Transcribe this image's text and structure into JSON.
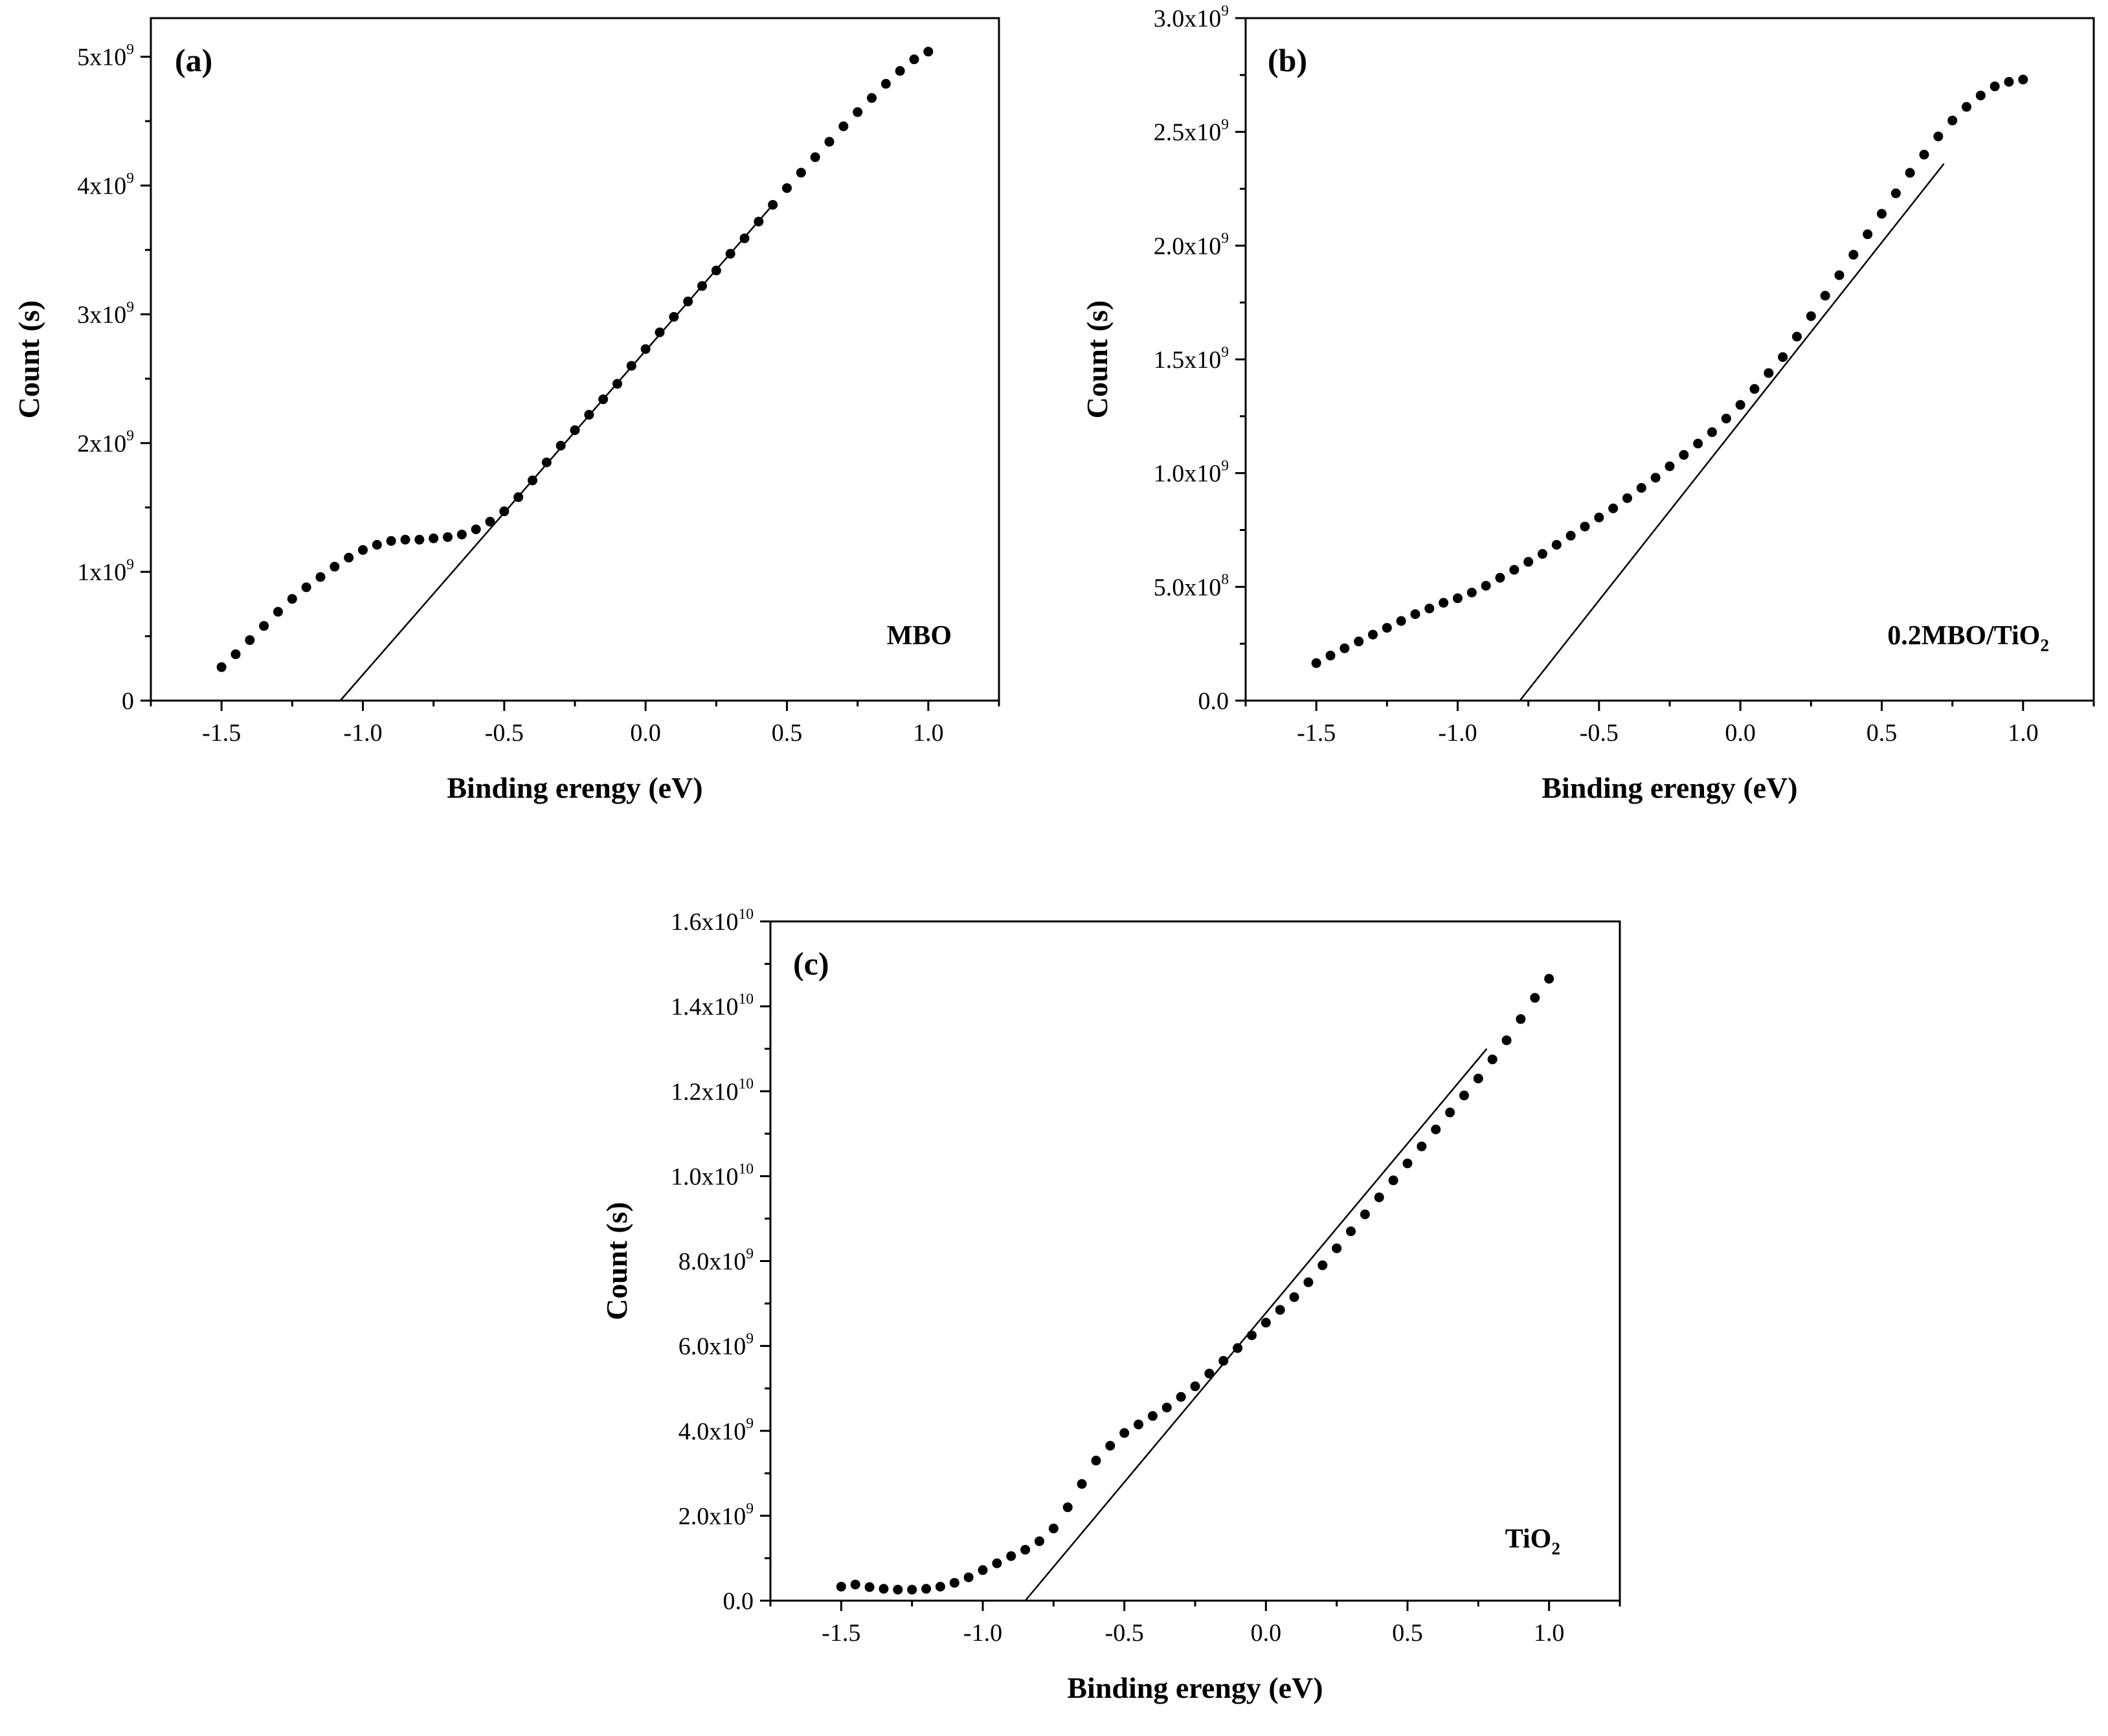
{
  "chart_data": [
    {
      "type": "scatter",
      "panel_label": "(a)",
      "annotation": "MBO",
      "xlabel": "Binding erengy (eV)",
      "ylabel": "Count (s)",
      "xlim": [
        -1.75,
        1.25
      ],
      "ylim": [
        0,
        5300000000.0
      ],
      "x_ticks": [
        -1.5,
        -1.0,
        -0.5,
        0.0,
        0.5,
        1.0
      ],
      "x_tick_labels": [
        "-1.5",
        "-1.0",
        "-0.5",
        "0.0",
        "0.5",
        "1.0"
      ],
      "y_ticks": [
        0,
        1000000000.0,
        2000000000.0,
        3000000000.0,
        4000000000.0,
        5000000000.0
      ],
      "y_tick_labels": [
        {
          "base": "0",
          "exp": ""
        },
        {
          "base": "1x10",
          "exp": "9"
        },
        {
          "base": "2x10",
          "exp": "9"
        },
        {
          "base": "3x10",
          "exp": "9"
        },
        {
          "base": "4x10",
          "exp": "9"
        },
        {
          "base": "5x10",
          "exp": "9"
        }
      ],
      "series": [
        {
          "name": "data",
          "x": [
            -1.5,
            -1.45,
            -1.4,
            -1.35,
            -1.3,
            -1.25,
            -1.2,
            -1.15,
            -1.1,
            -1.05,
            -1.0,
            -0.95,
            -0.9,
            -0.85,
            -0.8,
            -0.75,
            -0.7,
            -0.65,
            -0.6,
            -0.55,
            -0.5,
            -0.45,
            -0.4,
            -0.35,
            -0.3,
            -0.25,
            -0.2,
            -0.15,
            -0.1,
            -0.05,
            0.0,
            0.05,
            0.1,
            0.15,
            0.2,
            0.25,
            0.3,
            0.35,
            0.4,
            0.45,
            0.5,
            0.55,
            0.6,
            0.65,
            0.7,
            0.75,
            0.8,
            0.85,
            0.9,
            0.95,
            1.0
          ],
          "y": [
            260000000.0,
            360000000.0,
            470000000.0,
            580000000.0,
            690000000.0,
            790000000.0,
            880000000.0,
            960000000.0,
            1040000000.0,
            1110000000.0,
            1170000000.0,
            1210000000.0,
            1240000000.0,
            1250000000.0,
            1250000000.0,
            1260000000.0,
            1270000000.0,
            1290000000.0,
            1330000000.0,
            1390000000.0,
            1470000000.0,
            1580000000.0,
            1710000000.0,
            1850000000.0,
            1980000000.0,
            2100000000.0,
            2220000000.0,
            2340000000.0,
            2460000000.0,
            2600000000.0,
            2730000000.0,
            2860000000.0,
            2980000000.0,
            3100000000.0,
            3220000000.0,
            3340000000.0,
            3470000000.0,
            3590000000.0,
            3720000000.0,
            3850000000.0,
            3980000000.0,
            4100000000.0,
            4220000000.0,
            4340000000.0,
            4460000000.0,
            4570000000.0,
            4680000000.0,
            4790000000.0,
            4890000000.0,
            4980000000.0,
            5040000000.0
          ]
        }
      ],
      "fit_line": {
        "x": [
          -1.08,
          0.45
        ],
        "y": [
          0,
          3850000000.0
        ]
      }
    },
    {
      "type": "scatter",
      "panel_label": "(b)",
      "annotation": {
        "base": "0.2MBO/TiO",
        "sub": "2"
      },
      "xlabel": "Binding erengy (eV)",
      "ylabel": "Count (s)",
      "xlim": [
        -1.75,
        1.25
      ],
      "ylim": [
        0,
        3000000000.0
      ],
      "x_ticks": [
        -1.5,
        -1.0,
        -0.5,
        0.0,
        0.5,
        1.0
      ],
      "x_tick_labels": [
        "-1.5",
        "-1.0",
        "-0.5",
        "0.0",
        "0.5",
        "1.0"
      ],
      "y_ticks": [
        0,
        500000000.0,
        1000000000.0,
        1500000000.0,
        2000000000.0,
        2500000000.0,
        3000000000.0
      ],
      "y_tick_labels": [
        {
          "base": "0.0",
          "exp": ""
        },
        {
          "base": "5.0x10",
          "exp": "8"
        },
        {
          "base": "1.0x10",
          "exp": "9"
        },
        {
          "base": "1.5x10",
          "exp": "9"
        },
        {
          "base": "2.0x10",
          "exp": "9"
        },
        {
          "base": "2.5x10",
          "exp": "9"
        },
        {
          "base": "3.0x10",
          "exp": "9"
        }
      ],
      "series": [
        {
          "name": "data",
          "x": [
            -1.5,
            -1.45,
            -1.4,
            -1.35,
            -1.3,
            -1.25,
            -1.2,
            -1.15,
            -1.1,
            -1.05,
            -1.0,
            -0.95,
            -0.9,
            -0.85,
            -0.8,
            -0.75,
            -0.7,
            -0.65,
            -0.6,
            -0.55,
            -0.5,
            -0.45,
            -0.4,
            -0.35,
            -0.3,
            -0.25,
            -0.2,
            -0.15,
            -0.1,
            -0.05,
            0.0,
            0.05,
            0.1,
            0.15,
            0.2,
            0.25,
            0.3,
            0.35,
            0.4,
            0.45,
            0.5,
            0.55,
            0.6,
            0.65,
            0.7,
            0.75,
            0.8,
            0.85,
            0.9,
            0.95,
            1.0
          ],
          "y": [
            165000000.0,
            198000000.0,
            230000000.0,
            260000000.0,
            290000000.0,
            320000000.0,
            350000000.0,
            380000000.0,
            405000000.0,
            430000000.0,
            450000000.0,
            475000000.0,
            505000000.0,
            540000000.0,
            575000000.0,
            610000000.0,
            645000000.0,
            685000000.0,
            725000000.0,
            765000000.0,
            805000000.0,
            845000000.0,
            890000000.0,
            935000000.0,
            980000000.0,
            1030000000.0,
            1080000000.0,
            1130000000.0,
            1180000000.0,
            1240000000.0,
            1300000000.0,
            1370000000.0,
            1440000000.0,
            1510000000.0,
            1600000000.0,
            1690000000.0,
            1780000000.0,
            1870000000.0,
            1960000000.0,
            2050000000.0,
            2140000000.0,
            2230000000.0,
            2320000000.0,
            2400000000.0,
            2480000000.0,
            2550000000.0,
            2610000000.0,
            2660000000.0,
            2700000000.0,
            2720000000.0,
            2730000000.0
          ]
        }
      ],
      "fit_line": {
        "x": [
          -0.78,
          0.72
        ],
        "y": [
          0,
          2360000000.0
        ]
      }
    },
    {
      "type": "scatter",
      "panel_label": "(c)",
      "annotation": {
        "base": "TiO",
        "sub": "2"
      },
      "xlabel": "Binding erengy (eV)",
      "ylabel": "Count (s)",
      "xlim": [
        -1.75,
        1.25
      ],
      "ylim": [
        0,
        16000000000.0
      ],
      "x_ticks": [
        -1.5,
        -1.0,
        -0.5,
        0.0,
        0.5,
        1.0
      ],
      "x_tick_labels": [
        "-1.5",
        "-1.0",
        "-0.5",
        "0.0",
        "0.5",
        "1.0"
      ],
      "y_ticks": [
        0,
        2000000000.0,
        4000000000.0,
        6000000000.0,
        8000000000.0,
        10000000000.0,
        12000000000.0,
        14000000000.0,
        16000000000.0
      ],
      "y_tick_labels": [
        {
          "base": "0.0",
          "exp": ""
        },
        {
          "base": "2.0x10",
          "exp": "9"
        },
        {
          "base": "4.0x10",
          "exp": "9"
        },
        {
          "base": "6.0x10",
          "exp": "9"
        },
        {
          "base": "8.0x10",
          "exp": "9"
        },
        {
          "base": "1.0x10",
          "exp": "10"
        },
        {
          "base": "1.2x10",
          "exp": "10"
        },
        {
          "base": "1.4x10",
          "exp": "10"
        },
        {
          "base": "1.6x10",
          "exp": "10"
        }
      ],
      "series": [
        {
          "name": "data",
          "x": [
            -1.5,
            -1.45,
            -1.4,
            -1.35,
            -1.3,
            -1.25,
            -1.2,
            -1.15,
            -1.1,
            -1.05,
            -1.0,
            -0.95,
            -0.9,
            -0.85,
            -0.8,
            -0.75,
            -0.7,
            -0.65,
            -0.6,
            -0.55,
            -0.5,
            -0.45,
            -0.4,
            -0.35,
            -0.3,
            -0.25,
            -0.2,
            -0.15,
            -0.1,
            -0.05,
            0.0,
            0.05,
            0.1,
            0.15,
            0.2,
            0.25,
            0.3,
            0.35,
            0.4,
            0.45,
            0.5,
            0.55,
            0.6,
            0.65,
            0.7,
            0.75,
            0.8,
            0.85,
            0.9,
            0.95,
            1.0
          ],
          "y": [
            330000000.0,
            380000000.0,
            320000000.0,
            280000000.0,
            260000000.0,
            260000000.0,
            280000000.0,
            330000000.0,
            420000000.0,
            550000000.0,
            720000000.0,
            880000000.0,
            1050000000.0,
            1200000000.0,
            1400000000.0,
            1700000000.0,
            2200000000.0,
            2750000000.0,
            3300000000.0,
            3650000000.0,
            3950000000.0,
            4150000000.0,
            4350000000.0,
            4550000000.0,
            4800000000.0,
            5050000000.0,
            5350000000.0,
            5650000000.0,
            5950000000.0,
            6250000000.0,
            6550000000.0,
            6850000000.0,
            7150000000.0,
            7500000000.0,
            7900000000.0,
            8300000000.0,
            8700000000.0,
            9100000000.0,
            9500000000.0,
            9900000000.0,
            10300000000.0,
            10700000000.0,
            11100000000.0,
            11500000000.0,
            11900000000.0,
            12300000000.0,
            12750000000.0,
            13200000000.0,
            13700000000.0,
            14200000000.0,
            14650000000.0
          ]
        }
      ],
      "fit_line": {
        "x": [
          -0.85,
          0.78
        ],
        "y": [
          0,
          13000000000.0
        ]
      }
    }
  ]
}
